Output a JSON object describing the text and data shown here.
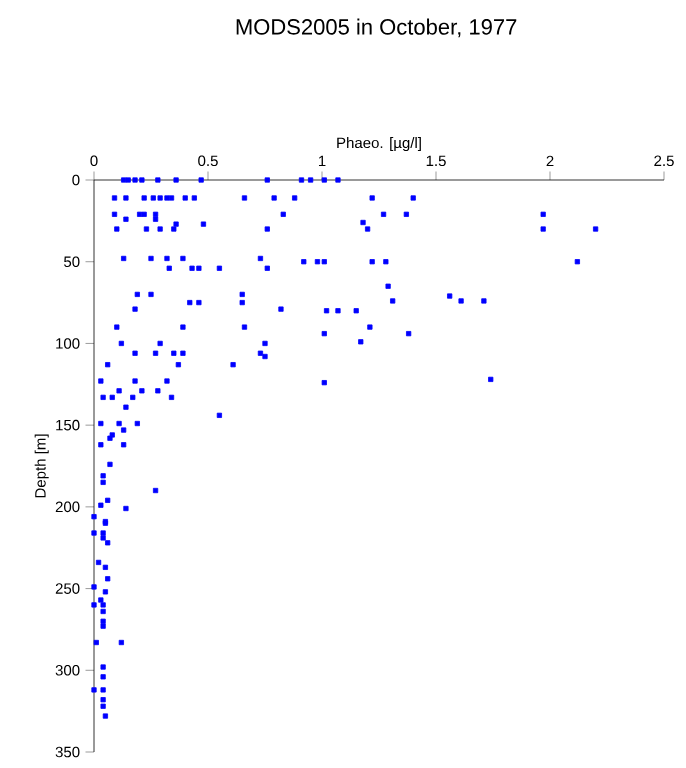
{
  "chart_data": {
    "type": "scatter",
    "title": "MODS2005 in October, 1977",
    "xlabel": "Phaeo. [µg/l]",
    "ylabel": "Depth [m]",
    "xlim": [
      0,
      2.5
    ],
    "xticks": [
      0,
      0.5,
      1,
      1.5,
      2,
      2.5
    ],
    "ylim": [
      350,
      0
    ],
    "yticks": [
      0,
      50,
      100,
      150,
      200,
      250,
      300,
      350
    ],
    "marker": "square",
    "grid": false,
    "series": [
      {
        "color": "#0000ff",
        "x": [
          0.13,
          0.15,
          0.18,
          0.21,
          0.28,
          0.36,
          0.47,
          0.76,
          0.91,
          0.95,
          1.01,
          1.07,
          0.09,
          0.14,
          0.22,
          0.26,
          0.29,
          0.32,
          0.34,
          0.4,
          0.44,
          0.66,
          0.79,
          0.88,
          1.22,
          1.4,
          0.09,
          0.2,
          0.22,
          0.27,
          0.83,
          1.27,
          1.37,
          1.97,
          0.14,
          0.27,
          0.36,
          0.48,
          1.18,
          0.1,
          0.23,
          0.29,
          0.35,
          0.76,
          1.2,
          1.97,
          2.2,
          0.13,
          0.25,
          0.32,
          0.39,
          0.73,
          0.92,
          0.98,
          1.01,
          1.22,
          1.28,
          2.12,
          0.33,
          0.43,
          0.46,
          0.55,
          0.76,
          1.29,
          0.19,
          0.25,
          0.65,
          1.56,
          1.31,
          1.61,
          1.71,
          0.42,
          0.46,
          0.65,
          0.18,
          0.82,
          1.02,
          1.07,
          1.15,
          0.1,
          0.39,
          0.66,
          1.21,
          1.01,
          1.38,
          0.12,
          0.29,
          0.75,
          1.17,
          0.18,
          0.27,
          0.35,
          0.39,
          0.73,
          0.75,
          0.06,
          0.37,
          0.61,
          1.74,
          1.01,
          0.03,
          0.18,
          0.32,
          0.11,
          0.21,
          0.28,
          0.04,
          0.08,
          0.17,
          0.34,
          0.14,
          0.55,
          0.03,
          0.11,
          0.19,
          0.13,
          0.08,
          0.07,
          0.03,
          0.13,
          0.07,
          0.04,
          0.04,
          0.27,
          0.06,
          0.03,
          0.14,
          0.0,
          0.05,
          0.05,
          0.0,
          0.04,
          0.04,
          0.06,
          0.02,
          0.05,
          0.06,
          0.0,
          0.05,
          0.03,
          0.0,
          0.04,
          0.04,
          0.04,
          0.04,
          0.01,
          0.12,
          0.04,
          0.04,
          0.0,
          0.04,
          0.04,
          0.04,
          0.05
        ],
        "values": [
          0,
          0,
          0,
          0,
          0,
          0,
          0,
          0,
          0,
          0,
          0,
          0,
          11,
          11,
          11,
          11,
          11,
          11,
          11,
          11,
          11,
          11,
          11,
          11,
          11,
          11,
          21,
          21,
          21,
          21,
          21,
          21,
          21,
          21,
          24,
          24,
          27,
          27,
          26,
          30,
          30,
          30,
          30,
          30,
          30,
          30,
          30,
          48,
          48,
          48,
          48,
          48,
          50,
          50,
          50,
          50,
          50,
          50,
          54,
          54,
          54,
          54,
          54,
          65,
          70,
          70,
          70,
          71,
          74,
          74,
          74,
          75,
          75,
          75,
          79,
          79,
          80,
          80,
          80,
          90,
          90,
          90,
          90,
          94,
          94,
          100,
          100,
          100,
          99,
          106,
          106,
          106,
          106,
          106,
          108,
          113,
          113,
          113,
          122,
          124,
          123,
          123,
          123,
          129,
          129,
          129,
          133,
          133,
          133,
          133,
          139,
          144,
          149,
          149,
          149,
          153,
          156,
          158,
          162,
          162,
          174,
          181,
          185,
          190,
          196,
          199,
          201,
          206,
          209,
          210,
          216,
          216,
          219,
          222,
          234,
          237,
          244,
          249,
          252,
          257,
          260,
          260,
          264,
          270,
          273,
          283,
          283,
          298,
          304,
          312,
          312,
          318,
          322,
          328
        ]
      }
    ]
  }
}
